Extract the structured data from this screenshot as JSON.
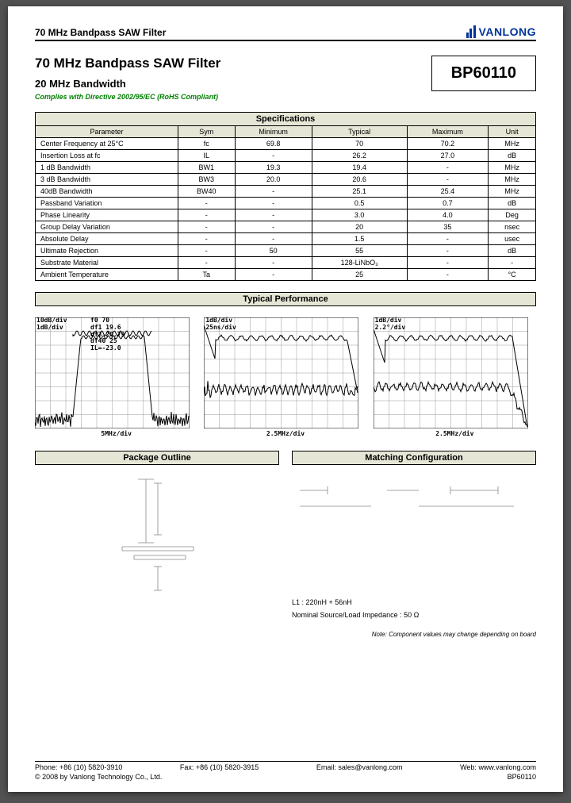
{
  "header": {
    "top_title": "70 MHz Bandpass SAW Filter",
    "logo_text": "VANLONG",
    "logo_color": "#003399"
  },
  "title": {
    "main": "70 MHz Bandpass SAW Filter",
    "sub": "20 MHz Bandwidth",
    "compliance": "Complies with Directive 2002/95/EC (RoHS Compliant)",
    "partnum": "BP60110"
  },
  "specs": {
    "header": "Specifications",
    "columns": [
      "Parameter",
      "Sym",
      "Minimum",
      "Typical",
      "Maximum",
      "Unit"
    ],
    "rows": [
      [
        "Center Frequency at 25°C",
        "fc",
        "69.8",
        "70",
        "70.2",
        "MHz"
      ],
      [
        "Insertion Loss at fc",
        "IL",
        "-",
        "26.2",
        "27.0",
        "dB"
      ],
      [
        "1 dB Bandwidth",
        "BW1",
        "19.3",
        "19.4",
        "-",
        "MHz"
      ],
      [
        "3 dB Bandwidth",
        "BW3",
        "20.0",
        "20.6",
        "-",
        "MHz"
      ],
      [
        "40dB Bandwidth",
        "BW40",
        "-",
        "25.1",
        "25.4",
        "MHz"
      ],
      [
        "Passband Variation",
        "-",
        "-",
        "0.5",
        "0.7",
        "dB"
      ],
      [
        "Phase Linearity",
        "-",
        "-",
        "3.0",
        "4.0",
        "Deg"
      ],
      [
        "Group Delay Variation",
        "-",
        "-",
        "20",
        "35",
        "nsec"
      ],
      [
        "Absolute Delay",
        "-",
        "-",
        "1.5",
        "-",
        "usec"
      ],
      [
        "Ultimate Rejection",
        "-",
        "50",
        "55",
        "-",
        "dB"
      ],
      [
        "Substrate Material",
        "-",
        "-",
        "128-LiNbO₃",
        "-",
        "-"
      ],
      [
        "Ambient Temperature",
        "Ta",
        "-",
        "25",
        "-",
        "°C"
      ]
    ]
  },
  "typical_perf": {
    "header": "Typical Performance",
    "chart1": {
      "top": "10dB/div\n1dB/div",
      "top2": "f0 70\ndf1 19.6\ndf3 20.79\ndf40 25\nIL=-23.0",
      "bottom": "5MHz/div"
    },
    "chart2": {
      "top": "1dB/div\n25ns/div",
      "bottom": "2.5MHz/div"
    },
    "chart3": {
      "top": "1dB/div\n2.2°/div",
      "bottom": "2.5MHz/div"
    },
    "grid_color": "#999999",
    "trace_color": "#000000"
  },
  "package": {
    "header": "Package Outline"
  },
  "matching": {
    "header": "Matching Configuration",
    "l1": "L1 : 220nH + 56nH",
    "impedance": "Nominal Source/Load Impedance : 50 Ω",
    "note": "Note: Component values may change depending on board"
  },
  "footer": {
    "phone": "Phone: +86 (10) 5820-3910",
    "fax": "Fax: +86 (10) 5820-3915",
    "email": "Email: sales@vanlong.com",
    "web": "Web: www.vanlong.com",
    "copyright": "© 2008 by Vanlong Technology Co., Ltd.",
    "partnum": "BP60110"
  }
}
